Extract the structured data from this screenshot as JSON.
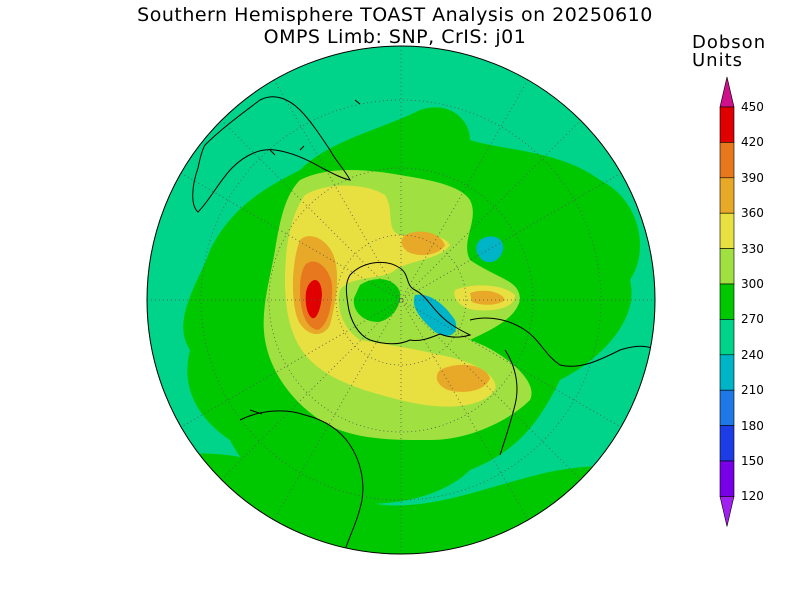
{
  "title": {
    "line1": "Southern Hemisphere TOAST Analysis on 20250610",
    "line2": "OMPS Limb: SNP, CrIS: j01"
  },
  "colorbar": {
    "title_line1": "Dobson",
    "title_line2": "Units",
    "levels": [
      {
        "label": "450",
        "color": "#d0108a"
      },
      {
        "label": "420",
        "color": "#e00000"
      },
      {
        "label": "390",
        "color": "#e8781e"
      },
      {
        "label": "360",
        "color": "#e8a828"
      },
      {
        "label": "330",
        "color": "#e8e040"
      },
      {
        "label": "300",
        "color": "#a0e040"
      },
      {
        "label": "270",
        "color": "#00c800"
      },
      {
        "label": "240",
        "color": "#00d48a"
      },
      {
        "label": "210",
        "color": "#00b4c8"
      },
      {
        "label": "180",
        "color": "#1e78e6"
      },
      {
        "label": "150",
        "color": "#1e3ce6"
      },
      {
        "label": "120",
        "color": "#7800e6"
      }
    ],
    "bottom_color": "#a020f0"
  },
  "map": {
    "projection": "south-polar-stereographic",
    "background_color": "#00d48a"
  }
}
